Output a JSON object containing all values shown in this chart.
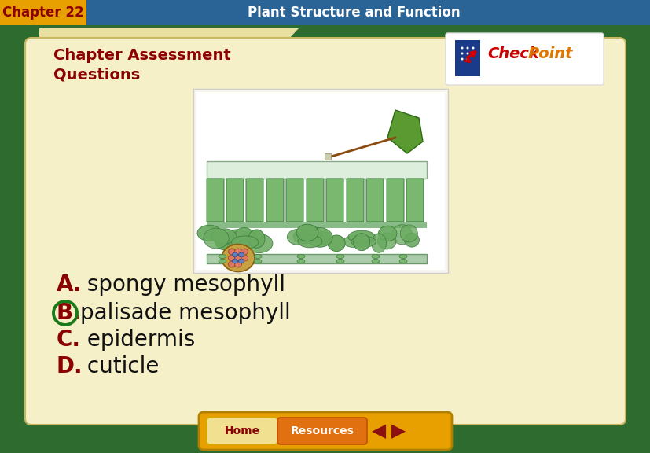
{
  "title_bar_text": "Chapter 22",
  "title_bar_subtitle": "Plant Structure and Function",
  "title_bar_bg": "#2a6496",
  "title_bar_tab_bg": "#e8a000",
  "header_text_line1": "Chapter Assessment",
  "header_text_line2": "Questions",
  "header_color": "#8b0000",
  "main_bg": "#2d6b2e",
  "card_bg": "#f5f0c8",
  "card_tab_bg": "#e8dfa0",
  "answer_letters": [
    "A.",
    "B.",
    "C.",
    "D."
  ],
  "answer_texts": [
    " spongy mesophyll",
    "palisade mesophyll",
    " epidermis",
    " cuticle"
  ],
  "answer_color": "#8b0000",
  "answer_text_color": "#111111",
  "correct_idx": 1,
  "circle_color": "#1a7a1a",
  "check_color": "#cc0000",
  "point_color": "#e07800",
  "bottom_bar_bg": "#e8a000",
  "home_btn_bg": "#f0d060",
  "resources_btn_bg": "#e07010",
  "btn_text_color": "#8b0000",
  "arrow_color": "#8b1010",
  "img_bg": "#f8f5ee",
  "leaf_color": "#5a9a30",
  "palisade_color": "#7ab870",
  "palisade_edge": "#3a7a3a",
  "spongy_color": "#6aaa60",
  "spongy_edge": "#3a7a3a",
  "cuticle_top_color": "#ddeedd",
  "cuticle_edge": "#88aa88",
  "vein_color": "#c8dfc8",
  "bottom_epidermis": "#aaccaa"
}
